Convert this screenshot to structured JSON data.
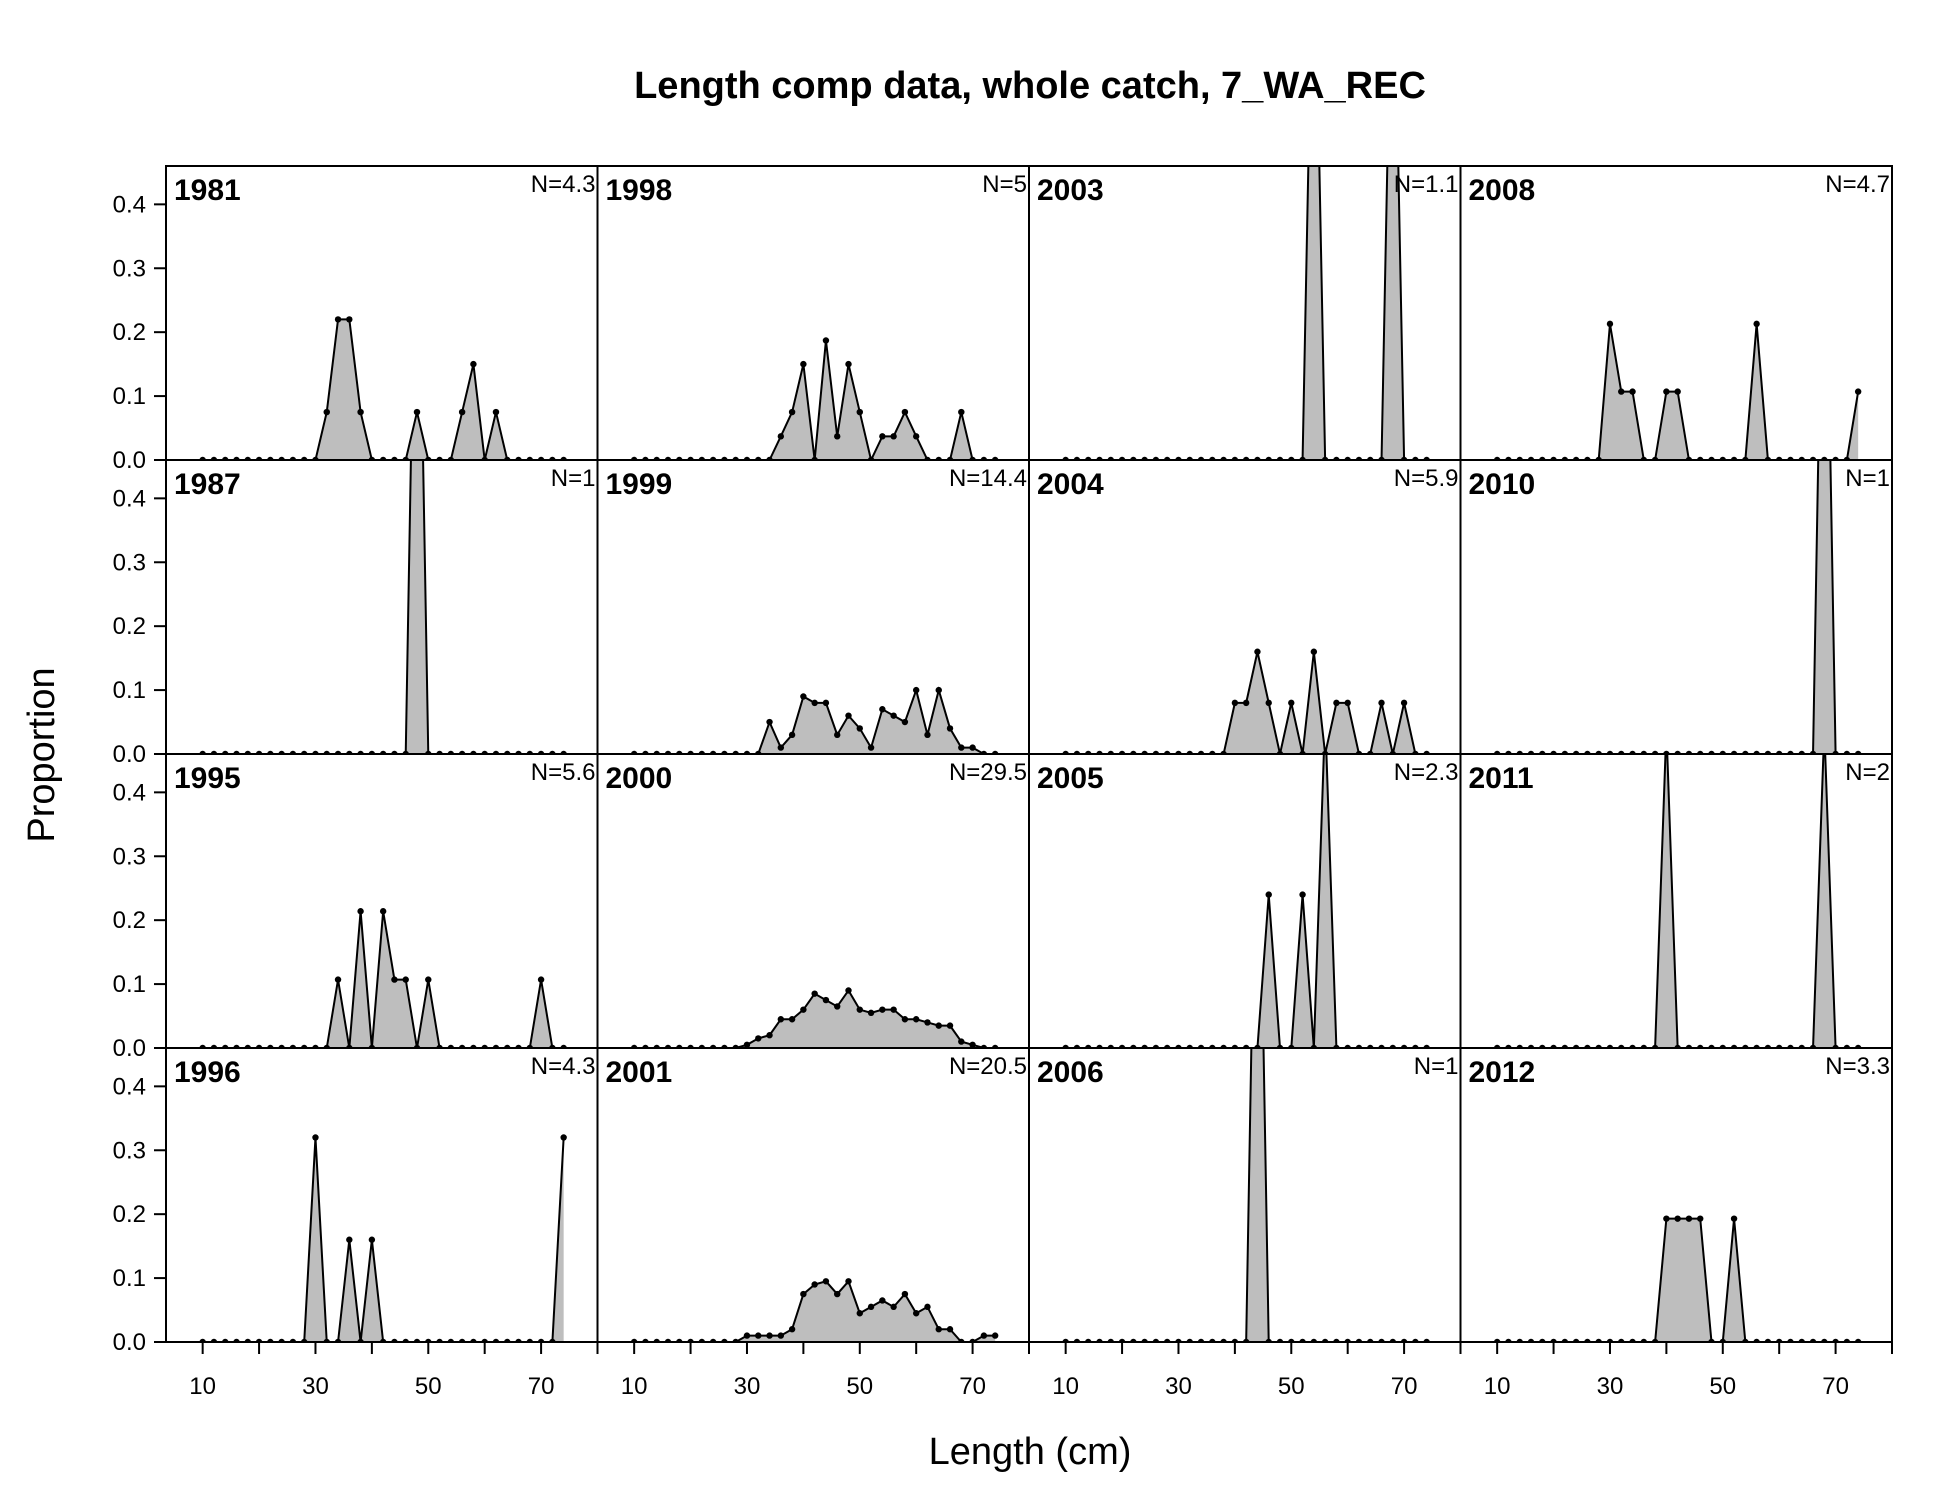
{
  "chart_data": {
    "type": "area",
    "title": "Length comp data, whole catch, 7_WA_REC",
    "xlabel": "Length (cm)",
    "ylabel": "Proportion",
    "xlim": [
      3.5,
      80
    ],
    "ylim": [
      0,
      0.46
    ],
    "x_ticks": [
      10,
      20,
      30,
      40,
      50,
      60,
      70,
      80
    ],
    "x_tick_labels": [
      "10",
      "30",
      "50",
      "70"
    ],
    "y_ticks": [
      0.0,
      0.1,
      0.2,
      0.3,
      0.4
    ],
    "y_tick_labels": [
      "0.0",
      "0.1",
      "0.2",
      "0.3",
      "0.4"
    ],
    "bins": [
      10,
      12,
      14,
      16,
      18,
      20,
      22,
      24,
      26,
      28,
      30,
      32,
      34,
      36,
      38,
      40,
      42,
      44,
      46,
      48,
      50,
      52,
      54,
      56,
      58,
      60,
      62,
      64,
      66,
      68,
      70,
      72,
      74
    ],
    "fill_color": "#bebebe",
    "line_color": "#000000",
    "grid": false,
    "panels": [
      {
        "year": "1981",
        "n_label": "N=4.3",
        "peaks": {
          "32": 0.075,
          "34": 0.22,
          "36": 0.22,
          "38": 0.075,
          "48": 0.075,
          "56": 0.075,
          "58": 0.15,
          "62": 0.075
        }
      },
      {
        "year": "1987",
        "n_label": "N=1",
        "peaks": {
          "48": 1.0
        }
      },
      {
        "year": "1995",
        "n_label": "N=5.6",
        "peaks": {
          "34": 0.107,
          "38": 0.214,
          "42": 0.214,
          "44": 0.107,
          "46": 0.107,
          "50": 0.107,
          "70": 0.107
        }
      },
      {
        "year": "1996",
        "n_label": "N=4.3",
        "peaks": {
          "30": 0.32,
          "36": 0.16,
          "40": 0.16,
          "74": 0.32
        }
      },
      {
        "year": "1998",
        "n_label": "N=5",
        "peaks": {
          "36": 0.037,
          "38": 0.075,
          "40": 0.15,
          "44": 0.187,
          "46": 0.037,
          "48": 0.15,
          "50": 0.075,
          "54": 0.037,
          "56": 0.037,
          "58": 0.075,
          "60": 0.037,
          "68": 0.075
        }
      },
      {
        "year": "1999",
        "n_label": "N=14.4",
        "peaks": {
          "34": 0.05,
          "36": 0.01,
          "38": 0.03,
          "40": 0.09,
          "42": 0.08,
          "44": 0.08,
          "46": 0.03,
          "48": 0.06,
          "50": 0.04,
          "52": 0.01,
          "54": 0.07,
          "56": 0.06,
          "58": 0.05,
          "60": 0.1,
          "62": 0.03,
          "64": 0.1,
          "66": 0.04,
          "68": 0.01,
          "70": 0.01
        }
      },
      {
        "year": "2000",
        "n_label": "N=29.5",
        "peaks": {
          "30": 0.005,
          "32": 0.015,
          "34": 0.02,
          "36": 0.045,
          "38": 0.045,
          "40": 0.06,
          "42": 0.085,
          "44": 0.075,
          "46": 0.065,
          "48": 0.09,
          "50": 0.06,
          "52": 0.055,
          "54": 0.06,
          "56": 0.06,
          "58": 0.045,
          "60": 0.045,
          "62": 0.04,
          "64": 0.035,
          "66": 0.035,
          "68": 0.01,
          "70": 0.005
        }
      },
      {
        "year": "2001",
        "n_label": "N=20.5",
        "peaks": {
          "30": 0.01,
          "32": 0.01,
          "34": 0.01,
          "36": 0.01,
          "38": 0.02,
          "40": 0.075,
          "42": 0.09,
          "44": 0.095,
          "46": 0.075,
          "48": 0.095,
          "50": 0.045,
          "52": 0.055,
          "54": 0.065,
          "56": 0.055,
          "58": 0.075,
          "60": 0.045,
          "62": 0.055,
          "64": 0.02,
          "66": 0.02,
          "72": 0.01,
          "74": 0.01
        }
      },
      {
        "year": "2003",
        "n_label": "N=1.1",
        "peaks": {
          "54": 0.9,
          "68": 0.9
        }
      },
      {
        "year": "2004",
        "n_label": "N=5.9",
        "peaks": {
          "40": 0.08,
          "42": 0.08,
          "44": 0.16,
          "46": 0.08,
          "50": 0.08,
          "54": 0.16,
          "58": 0.08,
          "60": 0.08,
          "66": 0.08,
          "70": 0.08
        }
      },
      {
        "year": "2005",
        "n_label": "N=2.3",
        "peaks": {
          "46": 0.24,
          "52": 0.24,
          "56": 0.52
        }
      },
      {
        "year": "2006",
        "n_label": "N=1",
        "peaks": {
          "44": 1.0
        }
      },
      {
        "year": "2008",
        "n_label": "N=4.7",
        "peaks": {
          "30": 0.213,
          "32": 0.107,
          "34": 0.107,
          "40": 0.107,
          "42": 0.107,
          "56": 0.213,
          "74": 0.107
        }
      },
      {
        "year": "2010",
        "n_label": "N=1",
        "peaks": {
          "68": 1.0
        }
      },
      {
        "year": "2011",
        "n_label": "N=2",
        "peaks": {
          "40": 0.5,
          "68": 0.5
        }
      },
      {
        "year": "2012",
        "n_label": "N=3.3",
        "peaks": {
          "40": 0.193,
          "42": 0.193,
          "44": 0.193,
          "46": 0.193,
          "52": 0.193
        }
      }
    ]
  }
}
